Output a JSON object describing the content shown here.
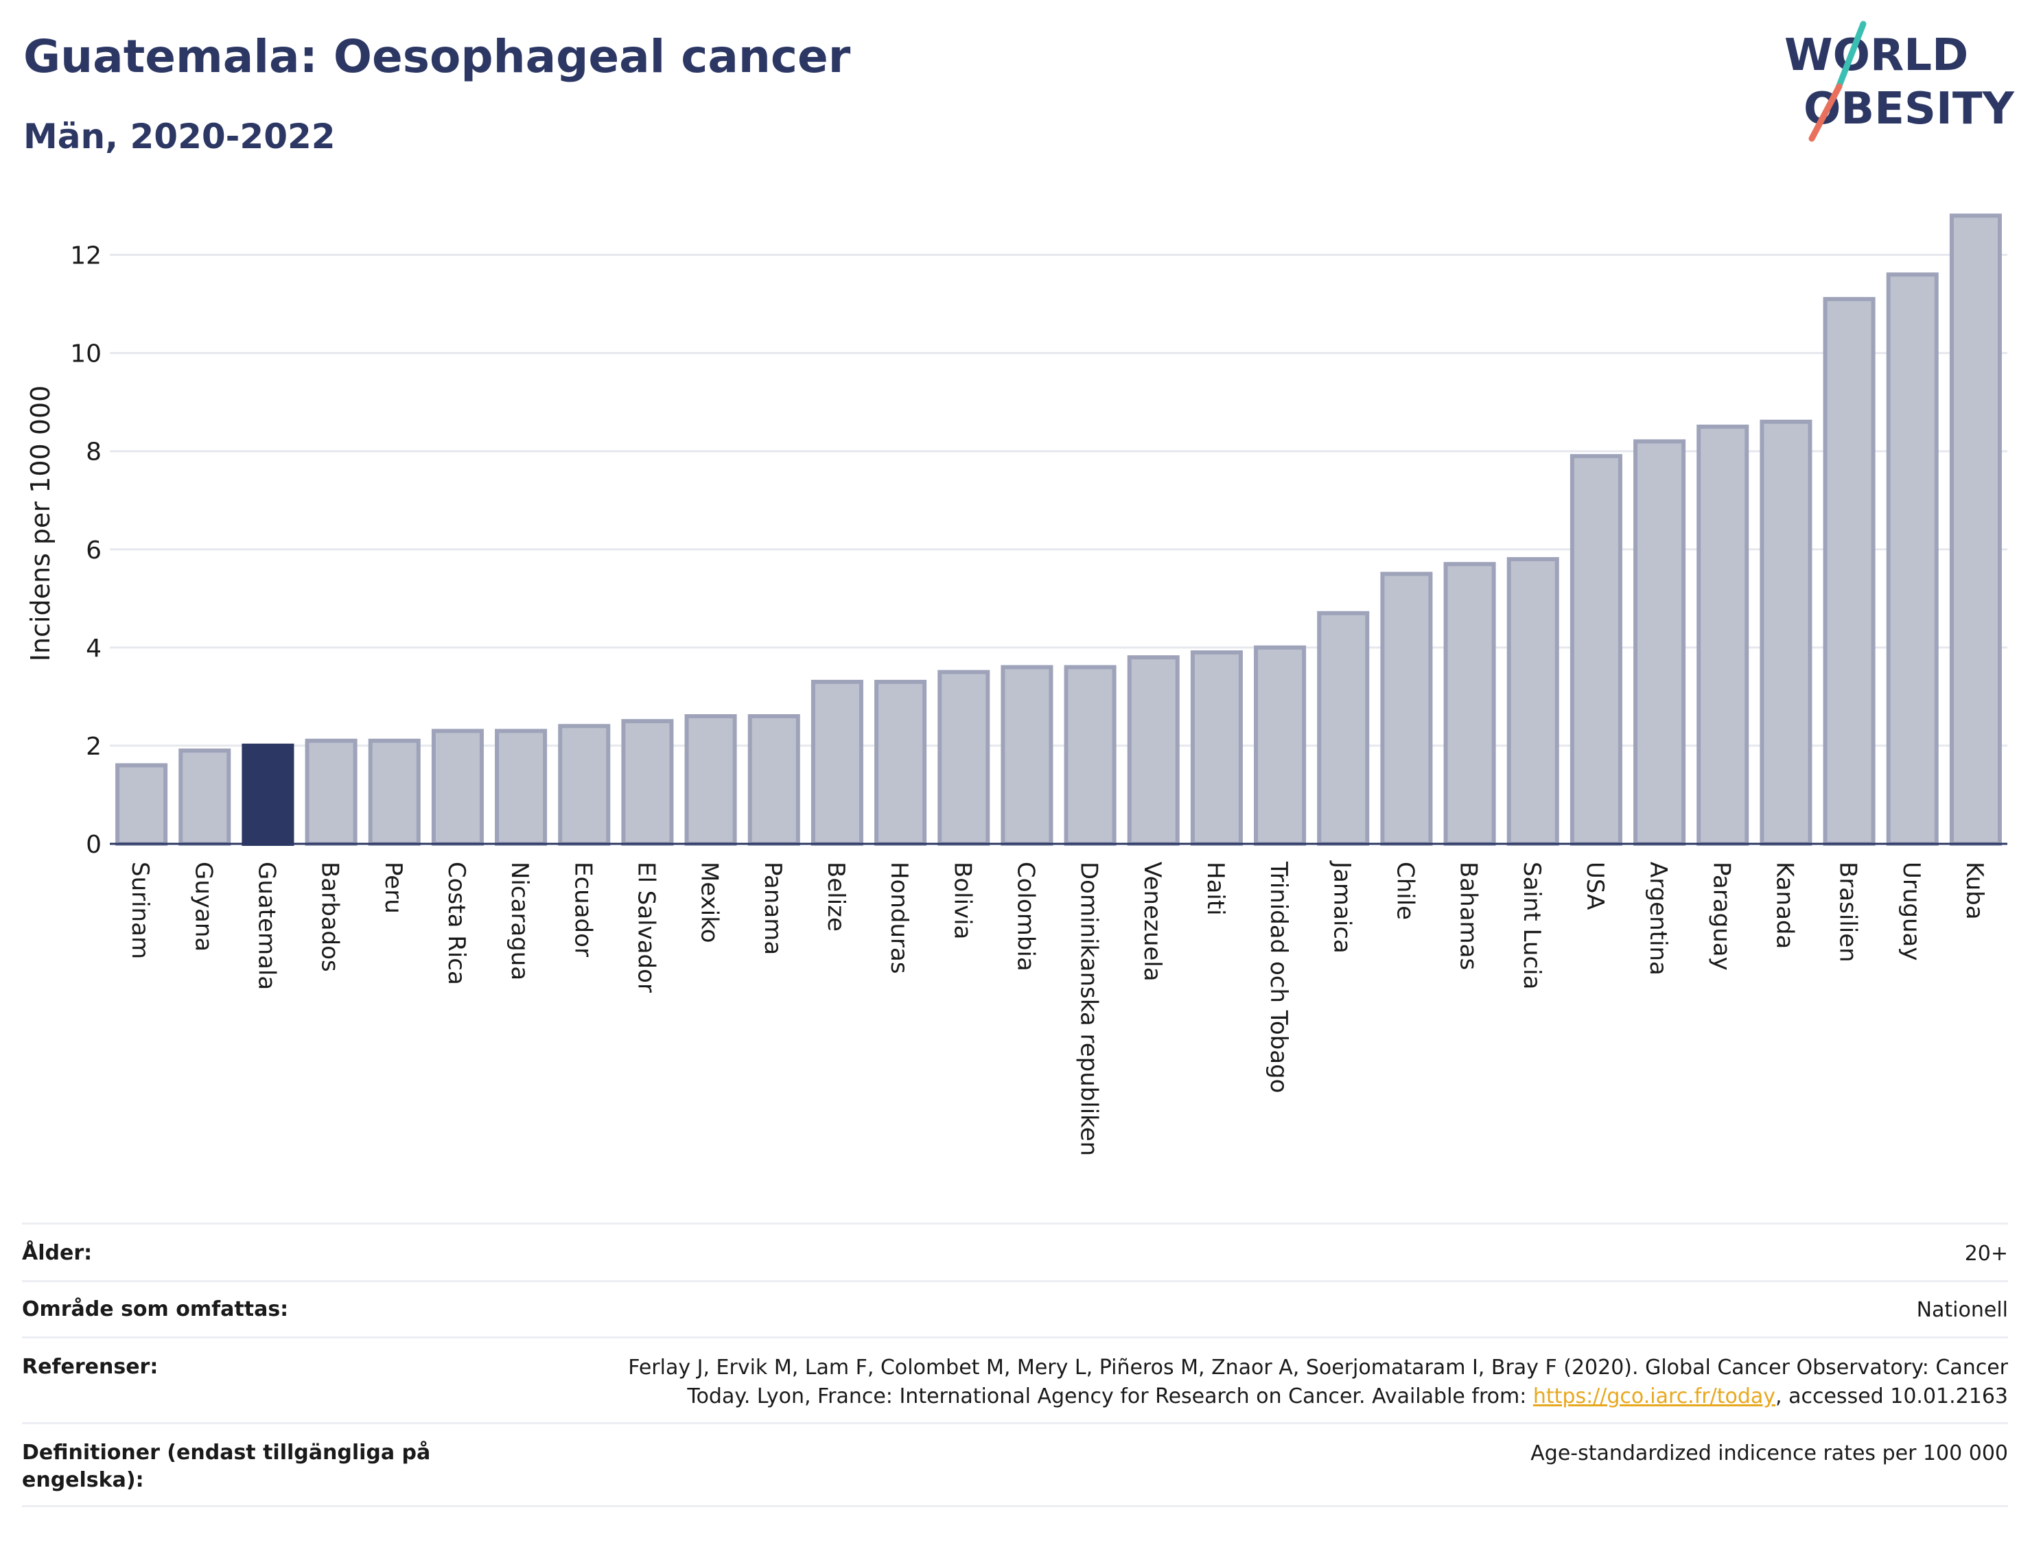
{
  "header": {
    "title": "Guatemala: Oesophageal cancer",
    "subtitle": "Män, 2020-2022"
  },
  "logo": {
    "line1": "WORLD",
    "line2": "OBESITY",
    "text_color": "#2c3764",
    "slash_top_color": "#3bbfb2",
    "slash_bottom_color": "#e8705d"
  },
  "colors": {
    "bar_fill": "#bec2cf",
    "bar_stroke": "#9ea3ba",
    "highlight_fill": "#2c3764",
    "grid": "#e6e8ee",
    "axis_text": "#1a1a1a"
  },
  "chart_data": {
    "type": "bar",
    "ylabel": "Incidens per 100 000",
    "ylim": [
      0,
      13
    ],
    "yticks": [
      0,
      2,
      4,
      6,
      8,
      10,
      12
    ],
    "grid": true,
    "highlight": "Guatemala",
    "categories": [
      "Surinam",
      "Guyana",
      "Guatemala",
      "Barbados",
      "Peru",
      "Costa Rica",
      "Nicaragua",
      "Ecuador",
      "El Salvador",
      "Mexiko",
      "Panama",
      "Belize",
      "Honduras",
      "Bolivia",
      "Colombia",
      "Dominikanska republiken",
      "Venezuela",
      "Haiti",
      "Trinidad och Tobago",
      "Jamaica",
      "Chile",
      "Bahamas",
      "Saint Lucia",
      "USA",
      "Argentina",
      "Paraguay",
      "Kanada",
      "Brasilien",
      "Uruguay",
      "Kuba"
    ],
    "values": [
      1.6,
      1.9,
      2.0,
      2.1,
      2.1,
      2.3,
      2.3,
      2.4,
      2.5,
      2.6,
      2.6,
      3.3,
      3.3,
      3.5,
      3.6,
      3.6,
      3.8,
      3.9,
      4.0,
      4.7,
      5.5,
      5.7,
      5.8,
      7.9,
      8.2,
      8.5,
      8.6,
      11.1,
      11.6,
      12.8
    ]
  },
  "info": {
    "age_label": "Ålder:",
    "age_value": "20+",
    "area_label": "Område som omfattas:",
    "area_value": "Nationell",
    "ref_label": "Referenser:",
    "ref_text_1": "Ferlay J, Ervik M, Lam F, Colombet M, Mery L, Piñeros M, Znaor A, Soerjomataram I, Bray F (2020). Global Cancer Observatory: Cancer",
    "ref_text_2": "Today. Lyon, France: International Agency for Research on Cancer. Available from: ",
    "ref_link": "https://gco.iarc.fr/today",
    "ref_text_3": ", accessed 10.01.2163",
    "def_label_1": "Definitioner (endast tillgängliga på",
    "def_label_2": "engelska):",
    "def_value": "Age-standardized indicence rates per 100 000"
  }
}
